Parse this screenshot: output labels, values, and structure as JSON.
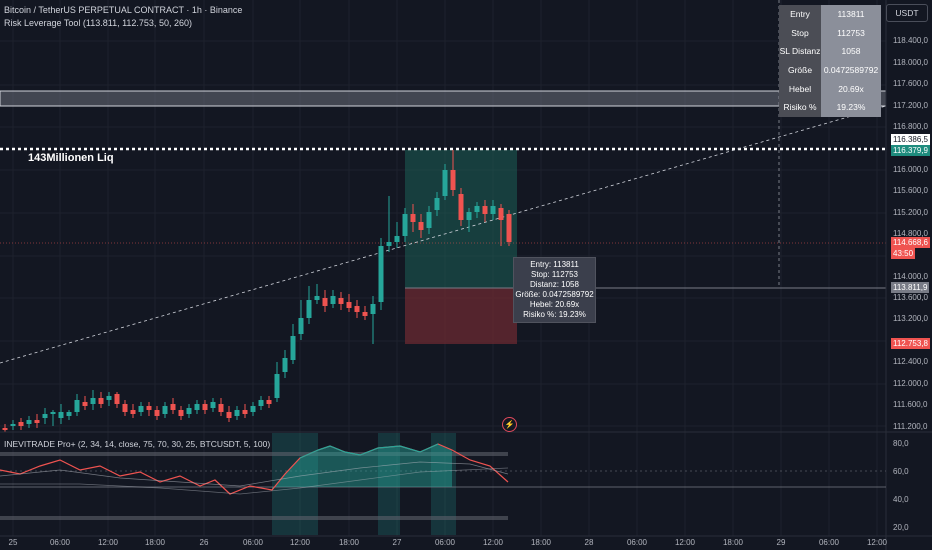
{
  "header": {
    "symbol_line": "Bitcoin / TetherUS PERPETUAL CONTRACT · 1h · Binance",
    "indicator_line": "Risk Leverage Tool (113.811, 112.753, 50, 260)"
  },
  "currency_button": "USDT",
  "info_table": [
    {
      "key": "Entry",
      "value": "113811"
    },
    {
      "key": "Stop",
      "value": "112753"
    },
    {
      "key": "SL Distanz",
      "value": "1058"
    },
    {
      "key": "Größe",
      "value": "0.0472589792"
    },
    {
      "key": "Hebel",
      "value": "20.69x"
    },
    {
      "key": "Risiko %",
      "value": "19.23%"
    }
  ],
  "liq_label": "143Millionen Liq",
  "tooltip": {
    "entry": "Entry: 113811",
    "stop": "Stop: 112753",
    "distance": "Distanz: 1058",
    "size": "Größe: 0.0472589792",
    "leverage": "Hebel: 20.69x",
    "risk": "Risiko %: 19.23%"
  },
  "price_axis": [
    "118.400,0",
    "118.000,0",
    "117.600,0",
    "117.200,0",
    "116.800,0",
    "115.600,0",
    "115.200,0",
    "114.800,0",
    "114.000,0",
    "113.600,0",
    "113.200,0",
    "112.400,0",
    "112.000,0",
    "111.600,0",
    "111.200,0"
  ],
  "price_badges": {
    "level_white": "116.386,5",
    "level_teal": "116.379,9",
    "current_price": "114.668,6",
    "countdown": "43:50",
    "entry_level": "113.811,9",
    "stop_level": "112.753,8",
    "top_partial": "116.000,0"
  },
  "osc_axis": [
    "80,0",
    "60,0",
    "40,0",
    "20,0"
  ],
  "osc_label": "INEVITRADE Pro+ (2, 34, 14, close, 75, 70, 30, 25, BTCUSDT, 5, 100)",
  "time_axis": [
    "25",
    "06:00",
    "12:00",
    "18:00",
    "26",
    "06:00",
    "12:00",
    "18:00",
    "27",
    "06:00",
    "12:00",
    "18:00",
    "28",
    "06:00",
    "12:00",
    "18:00",
    "29",
    "06:00",
    "12:00"
  ],
  "colors": {
    "up": "#26a69a",
    "down": "#ef5350",
    "background": "#131722"
  }
}
